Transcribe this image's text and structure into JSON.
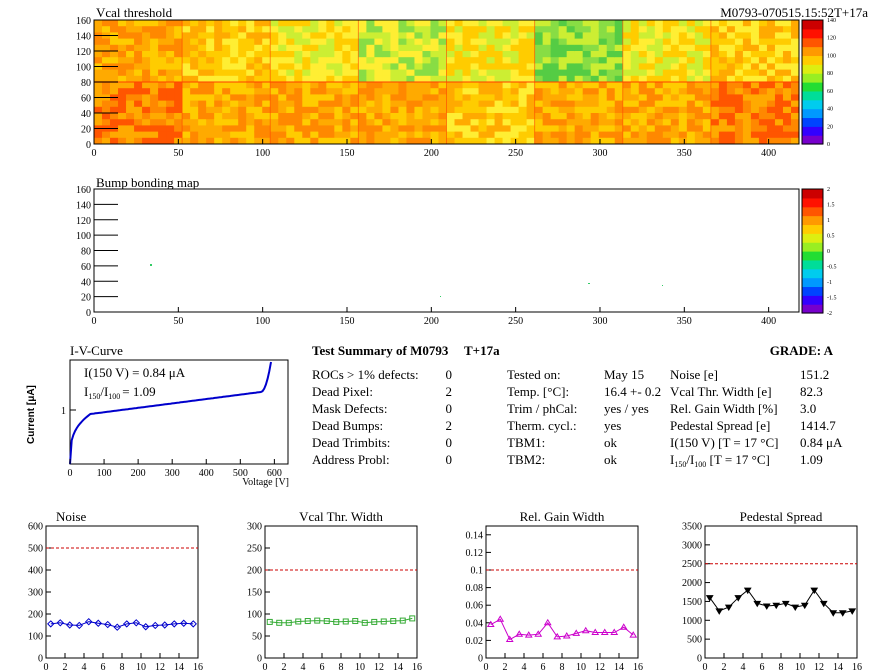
{
  "header": {
    "title": "Vcal threshold",
    "module_tag": "M0793-070515.15:52T+17a"
  },
  "heatmap_top": {
    "title": "Vcal threshold",
    "x_ticks": [
      "0",
      "50",
      "100",
      "150",
      "200",
      "250",
      "300",
      "350",
      "400"
    ],
    "y_ticks": [
      "0",
      "20",
      "40",
      "60",
      "80",
      "100",
      "120",
      "140",
      "160"
    ],
    "z_ticks": [
      "0",
      "20",
      "40",
      "60",
      "80",
      "100",
      "120",
      "140"
    ],
    "colors": {
      "high": "#ff3300",
      "mid": "#ffcc00",
      "low": "#66dd33"
    }
  },
  "heatmap_bump": {
    "title": "Bump bonding map",
    "x_ticks": [
      "0",
      "50",
      "100",
      "150",
      "200",
      "250",
      "300",
      "350",
      "400"
    ],
    "y_ticks": [
      "0",
      "20",
      "40",
      "60",
      "80",
      "100",
      "120",
      "140",
      "160"
    ],
    "z_ticks": [
      "-2",
      "-1.5",
      "-1",
      "-0.5",
      "0",
      "0.5",
      "1",
      "1.5",
      "2"
    ]
  },
  "iv": {
    "title": "I-V-Curve",
    "label_i150": "I(150 V) = 0.84 μA",
    "label_ratio_prefix": "I",
    "label_ratio_sub1": "150",
    "label_ratio_slash": "/I",
    "label_ratio_sub2": "100",
    "label_ratio_value": "=  1.09",
    "ylabel": "Current [μA]",
    "xlabel": "Voltage [V]",
    "y_tick": "1",
    "x_ticks": [
      "0",
      "100",
      "200",
      "300",
      "400",
      "500",
      "600"
    ]
  },
  "summary": {
    "title": "Test Summary of M0793",
    "temp_tag": "T+17a",
    "grade_label": "GRADE:  A",
    "left": [
      {
        "label": "ROCs > 1% defects:",
        "value": "0"
      },
      {
        "label": "Dead Pixel:",
        "value": "2"
      },
      {
        "label": "Mask Defects:",
        "value": "0"
      },
      {
        "label": "Dead Bumps:",
        "value": "2"
      },
      {
        "label": "Dead Trimbits:",
        "value": "0"
      },
      {
        "label": "Address Probl:",
        "value": "0"
      }
    ],
    "middle": [
      {
        "label": "Tested on:",
        "value": "May 15"
      },
      {
        "label": "Temp. [°C]:",
        "value": "16.4 +- 0.2"
      },
      {
        "label": "Trim / phCal:",
        "value": "yes / yes"
      },
      {
        "label": "Therm. cycl.:",
        "value": "yes"
      },
      {
        "label": "TBM1:",
        "value": "ok"
      },
      {
        "label": "TBM2:",
        "value": "ok"
      }
    ],
    "right": [
      {
        "label": "Noise [e]",
        "value": "151.2"
      },
      {
        "label": "Vcal Thr. Width [e]",
        "value": "82.3"
      },
      {
        "label": "Rel. Gain Width [%]",
        "value": "3.0"
      },
      {
        "label": "Pedestal Spread [e]",
        "value": "1414.7"
      },
      {
        "label": "I(150 V) [T = 17 °C]",
        "value": "0.84 μA"
      },
      {
        "label": "I150/I100 [T = 17 °C]",
        "value": "1.09"
      }
    ],
    "ratio_label": {
      "pre": "I",
      "sub1": "150",
      "mid": "/I",
      "sub2": "100",
      "post": "  [T = 17 °C]"
    }
  },
  "chart_data": [
    {
      "type": "line",
      "title": "Noise",
      "x": [
        0,
        1,
        2,
        3,
        4,
        5,
        6,
        7,
        8,
        9,
        10,
        11,
        12,
        13,
        14,
        15
      ],
      "values": [
        155,
        160,
        150,
        148,
        165,
        158,
        152,
        140,
        155,
        160,
        142,
        148,
        150,
        155,
        158,
        155
      ],
      "threshold": 500,
      "ylim": [
        0,
        600
      ],
      "xlim": [
        0,
        16
      ],
      "y_ticks": [
        "0",
        "100",
        "200",
        "300",
        "400",
        "500",
        "600"
      ],
      "x_ticks": [
        "0",
        "2",
        "4",
        "6",
        "8",
        "10",
        "12",
        "14",
        "16"
      ],
      "color": "#0000cc",
      "marker": "diamond"
    },
    {
      "type": "line",
      "title": "Vcal Thr. Width",
      "x": [
        0,
        1,
        2,
        3,
        4,
        5,
        6,
        7,
        8,
        9,
        10,
        11,
        12,
        13,
        14,
        15
      ],
      "values": [
        82,
        80,
        80,
        83,
        84,
        85,
        84,
        82,
        83,
        84,
        80,
        82,
        83,
        84,
        85,
        90
      ],
      "threshold": 200,
      "ylim": [
        0,
        300
      ],
      "xlim": [
        0,
        16
      ],
      "y_ticks": [
        "0",
        "50",
        "100",
        "150",
        "200",
        "250",
        "300"
      ],
      "x_ticks": [
        "0",
        "2",
        "4",
        "6",
        "8",
        "10",
        "12",
        "14",
        "16"
      ],
      "color": "#33aa33",
      "marker": "square"
    },
    {
      "type": "line",
      "title": "Rel. Gain Width",
      "x": [
        0,
        1,
        2,
        3,
        4,
        5,
        6,
        7,
        8,
        9,
        10,
        11,
        12,
        13,
        14,
        15
      ],
      "values": [
        0.038,
        0.044,
        0.021,
        0.027,
        0.026,
        0.027,
        0.04,
        0.024,
        0.025,
        0.028,
        0.031,
        0.029,
        0.029,
        0.029,
        0.035,
        0.026
      ],
      "threshold": 0.1,
      "ylim": [
        0,
        0.15
      ],
      "xlim": [
        0,
        16
      ],
      "y_ticks": [
        "0",
        "0.02",
        "0.04",
        "0.06",
        "0.08",
        "0.1",
        "0.12",
        "0.14"
      ],
      "x_ticks": [
        "0",
        "2",
        "4",
        "6",
        "8",
        "10",
        "12",
        "14",
        "16"
      ],
      "color": "#cc00cc",
      "marker": "triangle"
    },
    {
      "type": "line",
      "title": "Pedestal Spread",
      "x": [
        0,
        1,
        2,
        3,
        4,
        5,
        6,
        7,
        8,
        9,
        10,
        11,
        12,
        13,
        14,
        15
      ],
      "values": [
        1600,
        1250,
        1350,
        1600,
        1800,
        1450,
        1380,
        1400,
        1450,
        1350,
        1400,
        1800,
        1450,
        1200,
        1200,
        1250
      ],
      "threshold": 2500,
      "ylim": [
        0,
        3500
      ],
      "xlim": [
        0,
        16
      ],
      "y_ticks": [
        "0",
        "500",
        "1000",
        "1500",
        "2000",
        "2500",
        "3000",
        "3500"
      ],
      "x_ticks": [
        "0",
        "2",
        "4",
        "6",
        "8",
        "10",
        "12",
        "14",
        "16"
      ],
      "color": "#000000",
      "marker": "triangle-down"
    }
  ]
}
